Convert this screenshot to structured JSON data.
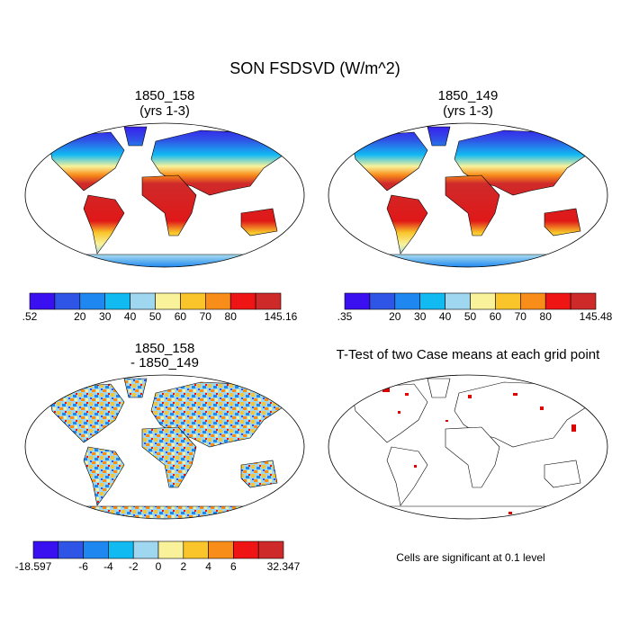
{
  "title": "SON FSDSVD (W/m^2)",
  "panels": [
    {
      "title": [
        "1850_158",
        "(yrs 1-3)"
      ],
      "colorbar": {
        "labels": [
          ".52",
          "20",
          "30",
          "40",
          "50",
          "60",
          "70",
          "80",
          "145.16"
        ],
        "colors": [
          "#3a10f0",
          "#2f55e6",
          "#1f88f0",
          "#12baf2",
          "#9fd6f0",
          "#f9f29a",
          "#f9c52a",
          "#f98d1a",
          "#f01515",
          "#cf2a2a"
        ]
      }
    },
    {
      "title": [
        "1850_149",
        "(yrs 1-3)"
      ],
      "colorbar": {
        "labels": [
          ".35",
          "20",
          "30",
          "40",
          "50",
          "60",
          "70",
          "80",
          "145.48"
        ],
        "colors": [
          "#3a10f0",
          "#2f55e6",
          "#1f88f0",
          "#12baf2",
          "#9fd6f0",
          "#f9f29a",
          "#f9c52a",
          "#f98d1a",
          "#f01515",
          "#cf2a2a"
        ]
      }
    },
    {
      "title": [
        "1850_158",
        "- 1850_149"
      ],
      "colorbar": {
        "labels": [
          "-18.597",
          "-6",
          "-4",
          "-2",
          "0",
          "2",
          "4",
          "6",
          "32.347"
        ],
        "colors": [
          "#3a10f0",
          "#2f55e6",
          "#1f88f0",
          "#12baf2",
          "#9fd6f0",
          "#f9f29a",
          "#f9c52a",
          "#f98d1a",
          "#f01515",
          "#cf2a2a"
        ]
      }
    },
    {
      "title": [
        "T-Test of two Case means at each grid point"
      ],
      "note": "Cells are significant at 0.1 level"
    }
  ]
}
